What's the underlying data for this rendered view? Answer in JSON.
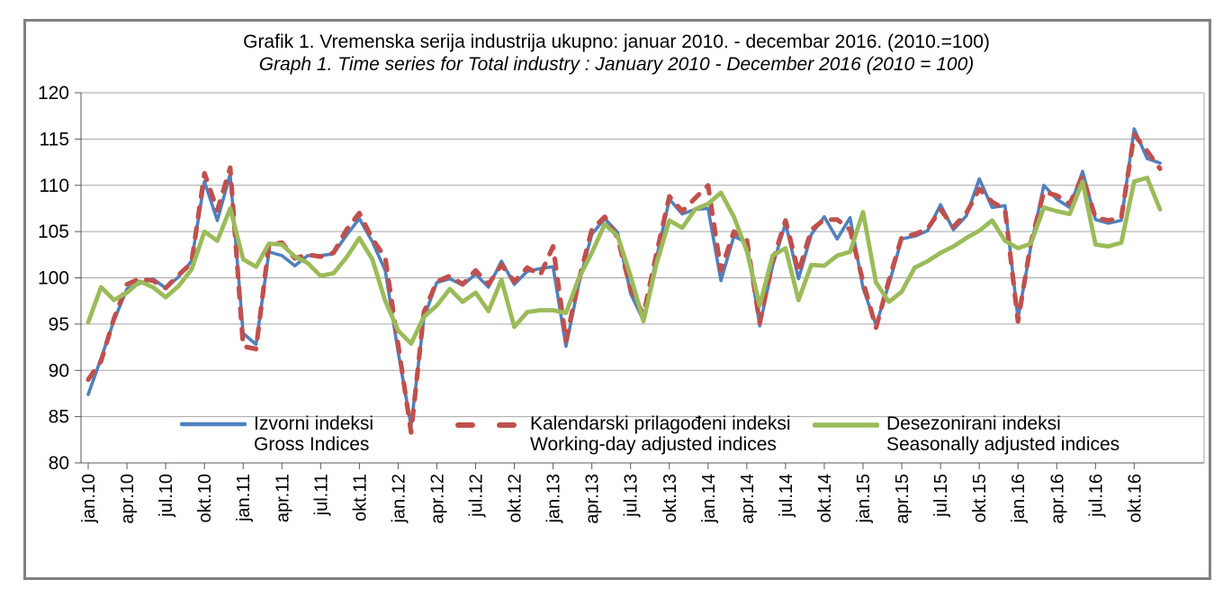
{
  "title": {
    "line1": "Grafik 1. Vremenska serija industrija ukupno: januar 2010. - decembar 2016. (2010.=100)",
    "line2": "Graph 1. Time series for Total industry : January 2010  - December 2016 (2010 = 100)"
  },
  "chart_data": {
    "type": "line",
    "title": "Grafik 1. Vremenska serija industrija ukupno: januar 2010. - decembar 2016. (2010.=100)",
    "subtitle": "Graph 1. Time series for Total industry : January 2010 - December 2016 (2010 = 100)",
    "ylim": [
      80,
      120
    ],
    "y_ticks": [
      80,
      85,
      90,
      95,
      100,
      105,
      110,
      115,
      120
    ],
    "grid": true,
    "legend_position": "bottom-inside",
    "months_total": 84,
    "x_tick_every_months": 3,
    "x_tick_labels": [
      "jan.10",
      "apr.10",
      "jul.10",
      "okt.10",
      "jan.11",
      "apr.11",
      "jul.11",
      "okt.11",
      "jan.12",
      "apr.12",
      "jul.12",
      "okt.12",
      "jan.13",
      "apr.13",
      "jul.13",
      "okt.13",
      "jan.14",
      "apr.14",
      "jul.14",
      "okt.14",
      "jan.15",
      "apr.15",
      "jul.15",
      "okt.15",
      "jan.16",
      "apr.16",
      "jul.16",
      "okt.16"
    ],
    "colors": {
      "gross": "#4F81BD",
      "working_day": "#C0504D",
      "seasonal": "#9BBB59"
    },
    "series": [
      {
        "id": "gross",
        "name_local": "Izvorni indeksi",
        "name_en": "Gross Indices",
        "color": "#4F81BD",
        "style": "solid",
        "values": [
          87.4,
          91.3,
          95.4,
          98.8,
          99.4,
          99.9,
          98.9,
          100.1,
          101.8,
          110.4,
          106.2,
          111.2,
          94.0,
          92.8,
          102.8,
          102.4,
          101.3,
          102.4,
          102.4,
          102.6,
          104.6,
          106.4,
          103.9,
          100.8,
          92.0,
          84.0,
          95.7,
          99.5,
          99.9,
          99.2,
          100.4,
          99.0,
          101.8,
          99.3,
          100.7,
          101.0,
          101.2,
          92.6,
          99.4,
          104.7,
          106.4,
          104.9,
          98.3,
          95.4,
          102.1,
          108.5,
          106.9,
          107.4,
          107.5,
          99.7,
          104.5,
          103.8,
          94.8,
          101.3,
          105.9,
          99.9,
          104.7,
          106.6,
          104.2,
          106.5,
          98.9,
          94.9,
          99.3,
          104.2,
          104.5,
          105.1,
          107.9,
          105.2,
          106.7,
          110.7,
          107.6,
          107.8,
          95.6,
          103.4,
          110.0,
          108.5,
          107.6,
          111.5,
          106.3,
          105.9,
          106.2,
          116.1,
          112.9,
          112.4
        ]
      },
      {
        "id": "working_day",
        "name_local": "Kalendarski prilagođeni indeksi",
        "name_en": "Working-day adjusted indices",
        "color": "#C0504D",
        "style": "dashed",
        "values": [
          89.0,
          91.0,
          95.6,
          99.3,
          99.9,
          99.7,
          98.9,
          100.3,
          101.6,
          111.3,
          107.3,
          111.9,
          92.6,
          92.3,
          103.6,
          103.8,
          102.1,
          102.5,
          102.3,
          102.7,
          105.2,
          107.0,
          104.2,
          102.2,
          92.8,
          83.3,
          96.3,
          99.6,
          100.2,
          99.3,
          100.8,
          99.3,
          101.4,
          99.6,
          101.1,
          100.3,
          103.4,
          93.2,
          99.8,
          105.2,
          106.6,
          104.3,
          98.8,
          96.0,
          102.6,
          108.8,
          107.2,
          108.6,
          110.0,
          100.8,
          105.0,
          104.1,
          95.1,
          101.8,
          106.2,
          100.6,
          105.2,
          106.3,
          106.3,
          105.2,
          99.6,
          94.6,
          99.7,
          104.4,
          104.7,
          105.3,
          107.4,
          105.5,
          107.0,
          109.6,
          108.2,
          107.4,
          95.3,
          103.8,
          109.3,
          108.9,
          108.0,
          111.0,
          106.5,
          106.2,
          106.5,
          115.5,
          113.7,
          111.8
        ]
      },
      {
        "id": "seasonal",
        "name_local": "Desezonirani indeksi",
        "name_en": "Seasonally adjusted indices",
        "color": "#9BBB59",
        "style": "solid",
        "values": [
          95.2,
          99.0,
          97.6,
          98.4,
          99.6,
          99.0,
          97.9,
          99.1,
          100.9,
          105.0,
          104.0,
          107.5,
          102.0,
          101.2,
          103.7,
          103.6,
          102.3,
          101.6,
          100.2,
          100.5,
          102.2,
          104.3,
          102.0,
          97.5,
          94.3,
          92.9,
          95.8,
          97.0,
          98.8,
          97.4,
          98.4,
          96.4,
          99.8,
          94.7,
          96.3,
          96.5,
          96.5,
          96.2,
          100.0,
          102.7,
          105.8,
          104.5,
          100.2,
          95.3,
          101.5,
          106.2,
          105.4,
          107.4,
          108.0,
          109.2,
          106.6,
          102.9,
          97.0,
          102.4,
          103.2,
          97.6,
          101.4,
          101.3,
          102.4,
          102.8,
          107.1,
          99.5,
          97.4,
          98.5,
          101.1,
          101.8,
          102.7,
          103.4,
          104.3,
          105.1,
          106.2,
          104.0,
          103.2,
          103.7,
          107.6,
          107.2,
          106.9,
          110.4,
          103.6,
          103.4,
          103.8,
          110.4,
          110.8,
          107.4
        ]
      }
    ]
  },
  "legend": {
    "item1_line1": "Izvorni indeksi",
    "item1_line2": "Gross Indices",
    "item2_line1": "Kalendarski prilagođeni indeksi",
    "item2_line2": "Working-day adjusted indices",
    "item3_line1": "Desezonirani indeksi",
    "item3_line2": "Seasonally adjusted indices"
  }
}
